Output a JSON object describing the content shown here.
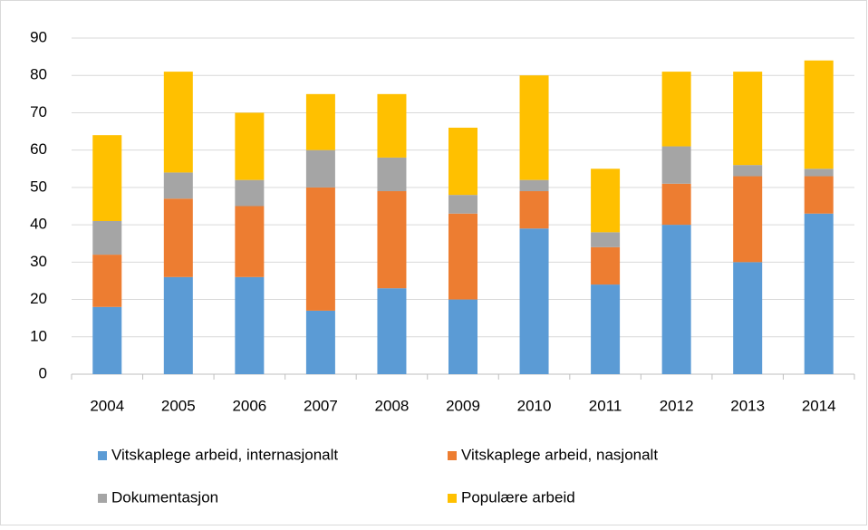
{
  "chart_data": {
    "type": "stacked_bar",
    "categories": [
      "2004",
      "2005",
      "2006",
      "2007",
      "2008",
      "2009",
      "2010",
      "2011",
      "2012",
      "2013",
      "2014"
    ],
    "series": [
      {
        "name": "Vitskaplege arbeid, internasjonalt",
        "color": "#5b9bd5",
        "values": [
          18,
          26,
          26,
          17,
          23,
          20,
          39,
          24,
          40,
          30,
          43
        ]
      },
      {
        "name": "Vitskaplege arbeid, nasjonalt",
        "color": "#ed7d31",
        "values": [
          14,
          21,
          19,
          33,
          26,
          23,
          10,
          10,
          11,
          23,
          10
        ]
      },
      {
        "name": "Dokumentasjon",
        "color": "#a5a5a5",
        "values": [
          9,
          7,
          7,
          10,
          9,
          5,
          3,
          4,
          10,
          3,
          2
        ]
      },
      {
        "name": "Populære arbeid",
        "color": "#ffc000",
        "values": [
          23,
          27,
          18,
          15,
          17,
          18,
          28,
          17,
          20,
          25,
          29
        ]
      }
    ],
    "ylim": [
      0,
      90
    ],
    "yticks": [
      0,
      10,
      20,
      30,
      40,
      50,
      60,
      70,
      80,
      90
    ],
    "grid": true,
    "legend": "bottom"
  }
}
